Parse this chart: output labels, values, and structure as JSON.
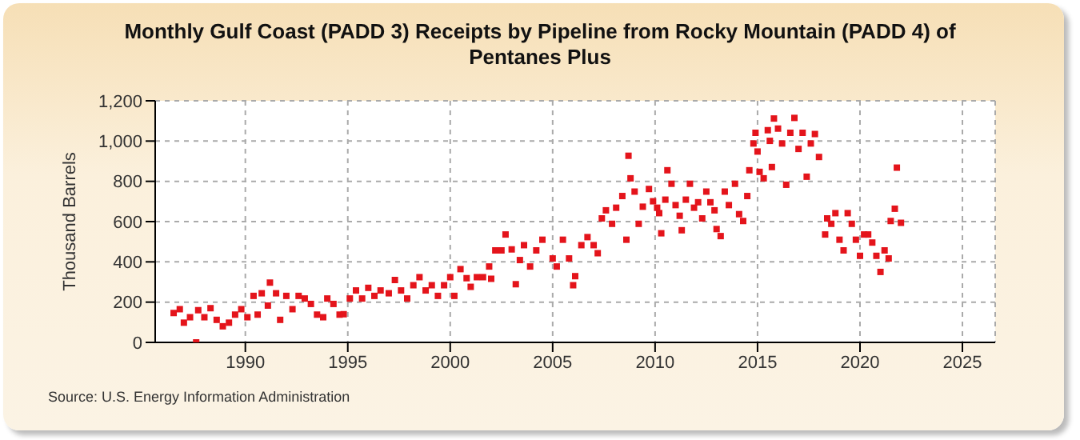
{
  "chart_data": {
    "type": "scatter",
    "title": "Monthly Gulf Coast (PADD 3) Receipts by Pipeline from Rocky Mountain (PADD 4) of Pentanes Plus",
    "ylabel": "Thousand Barrels",
    "annotations": [
      "Source: U.S. Energy Information Administration"
    ],
    "x": [
      1986.5,
      1986.8,
      1987.0,
      1987.3,
      1987.6,
      1987.7,
      1988.0,
      1988.3,
      1988.6,
      1988.9,
      1989.2,
      1989.5,
      1989.8,
      1990.1,
      1990.4,
      1990.6,
      1990.8,
      1991.1,
      1991.2,
      1991.5,
      1991.7,
      1992.0,
      1992.3,
      1992.6,
      1992.9,
      1993.2,
      1993.5,
      1993.8,
      1994.0,
      1994.3,
      1994.6,
      1994.8,
      1995.1,
      1995.4,
      1995.7,
      1996.0,
      1996.3,
      1996.6,
      1997.0,
      1997.3,
      1997.6,
      1997.9,
      1998.2,
      1998.5,
      1998.8,
      1999.1,
      1999.4,
      1999.7,
      2000.0,
      2000.2,
      2000.5,
      2000.8,
      2001.0,
      2001.3,
      2001.6,
      2001.9,
      2002.0,
      2002.2,
      2002.5,
      2002.7,
      2003.0,
      2003.2,
      2003.4,
      2003.6,
      2003.9,
      2004.2,
      2004.5,
      2005.0,
      2005.2,
      2005.5,
      2005.8,
      2006.0,
      2006.1,
      2006.4,
      2006.7,
      2007.0,
      2007.2,
      2007.4,
      2007.6,
      2007.9,
      2008.1,
      2008.4,
      2008.6,
      2008.7,
      2008.8,
      2009.0,
      2009.2,
      2009.4,
      2009.7,
      2009.9,
      2010.1,
      2010.2,
      2010.3,
      2010.5,
      2010.6,
      2010.8,
      2011.0,
      2011.2,
      2011.3,
      2011.5,
      2011.7,
      2011.9,
      2012.1,
      2012.3,
      2012.5,
      2012.7,
      2012.9,
      2013.0,
      2013.2,
      2013.4,
      2013.6,
      2013.9,
      2014.1,
      2014.3,
      2014.5,
      2014.6,
      2014.8,
      2014.9,
      2015.0,
      2015.1,
      2015.3,
      2015.5,
      2015.6,
      2015.7,
      2015.8,
      2016.0,
      2016.2,
      2016.4,
      2016.6,
      2016.8,
      2017.0,
      2017.2,
      2017.4,
      2017.6,
      2017.8,
      2018.0,
      2018.3,
      2018.4,
      2018.6,
      2018.8,
      2019.0,
      2019.2,
      2019.4,
      2019.6,
      2019.8,
      2020.0,
      2020.2,
      2020.4,
      2020.6,
      2020.8,
      2021.0,
      2021.2,
      2021.4,
      2021.5,
      2021.7,
      2021.8,
      2022.0
    ],
    "series": [
      {
        "color": "#e4141b",
        "values": [
          146,
          165,
          98,
          125,
          0,
          160,
          125,
          170,
          112,
          80,
          98,
          138,
          165,
          125,
          231,
          138,
          244,
          183,
          297,
          244,
          112,
          231,
          165,
          231,
          218,
          191,
          138,
          125,
          218,
          191,
          138,
          140,
          218,
          258,
          218,
          271,
          231,
          258,
          244,
          310,
          258,
          218,
          284,
          324,
          258,
          284,
          231,
          284,
          324,
          231,
          364,
          319,
          276,
          324,
          324,
          377,
          316,
          457,
          457,
          536,
          462,
          289,
          409,
          483,
          377,
          457,
          510,
          417,
          377,
          510,
          417,
          284,
          329,
          483,
          523,
          483,
          443,
          616,
          656,
          589,
          669,
          727,
          510,
          927,
          815,
          749,
          589,
          674,
          762,
          701,
          669,
          642,
          542,
          709,
          855,
          788,
          682,
          629,
          557,
          709,
          788,
          669,
          696,
          616,
          749,
          696,
          656,
          563,
          528,
          749,
          682,
          788,
          637,
          603,
          727,
          855,
          988,
          1041,
          948,
          847,
          815,
          1054,
          1001,
          871,
          1112,
          1062,
          988,
          783,
          1041,
          1115,
          961,
          1041,
          823,
          988,
          1035,
          921,
          536,
          616,
          589,
          642,
          510,
          457,
          642,
          589,
          510,
          430,
          536,
          536,
          496,
          430,
          350,
          457,
          417,
          603,
          664,
          868,
          594
        ]
      }
    ],
    "xlim": [
      1985.6,
      2026.6
    ],
    "xticks": [
      1990,
      1995,
      2000,
      2005,
      2010,
      2015,
      2020,
      2025
    ],
    "ylim": [
      0,
      1200
    ],
    "yticks": [
      0,
      200,
      400,
      600,
      800,
      {
        "value": 1000,
        "label": "1,000"
      },
      {
        "value": 1200,
        "label": "1,200"
      }
    ],
    "grid": true,
    "marker": "square"
  }
}
